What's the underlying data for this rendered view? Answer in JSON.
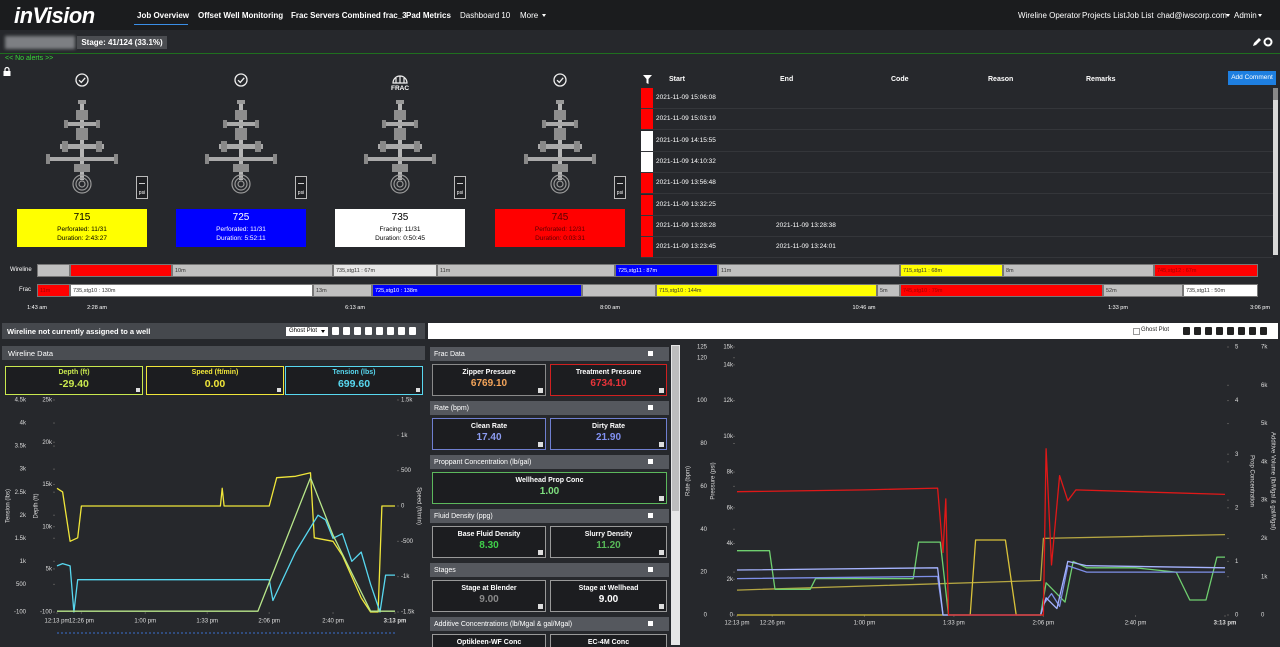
{
  "nav": {
    "brand": "inVision",
    "tabs": [
      "Job Overview",
      "Offset Well Monitoring",
      "Frac Servers Combined frac_3",
      "Pad Metrics",
      "Dashboard 10",
      "More"
    ],
    "right": [
      "Wireline Operator",
      "Projects List",
      "Job List",
      "chad@iwscorp.com",
      "Admin"
    ]
  },
  "stage": "Stage: 41/124 (33.1%)",
  "alerts": "<< No alerts >>",
  "gauge_unit": "psi",
  "wells": [
    {
      "number": "715",
      "line1": "Perforated: 11/31",
      "line2": "Duration: 2:43:27",
      "color": "#ffff00",
      "text_color": "#000000"
    },
    {
      "number": "725",
      "line1": "Perforated: 11/31",
      "line2": "Duration: 5:52:11",
      "color": "#0000ff",
      "text_color": "#ffffff"
    },
    {
      "number": "735",
      "line1": "Fracing: 11/31",
      "line2": "Duration: 0:50:45",
      "color": "#ffffff",
      "text_color": "#000000",
      "status": "FRAC"
    },
    {
      "number": "745",
      "line1": "Perforated: 12/31",
      "line2": "Duration: 0:03:31",
      "color": "#ff0000",
      "text_color": "#5a0000"
    }
  ],
  "events": {
    "headers": [
      "Start",
      "End",
      "Code",
      "Reason",
      "Remarks"
    ],
    "button": "Add Comment",
    "rows": [
      {
        "color": "#ff0000",
        "start": "2021-11-09 15:06:08"
      },
      {
        "color": "#ff0000",
        "start": "2021-11-09 15:03:19"
      },
      {
        "color": "#ffffff",
        "start": "2021-11-09 14:15:55"
      },
      {
        "color": "#ffffff",
        "start": "2021-11-09 14:10:32"
      },
      {
        "color": "#ff0000",
        "start": "2021-11-09 13:56:48"
      },
      {
        "color": "#ff0000",
        "start": "2021-11-09 13:32:25"
      },
      {
        "color": "#ff0000",
        "start": "2021-11-09 13:28:28",
        "end": "2021-11-09 13:28:38"
      },
      {
        "color": "#ff0000",
        "start": "2021-11-09 13:23:45",
        "end": "2021-11-09 13:24:01"
      }
    ]
  },
  "timeline": {
    "wireline_label": "Wireline",
    "frac_label": "Frac",
    "wireline": [
      {
        "color": "#c0c0c0"
      },
      {
        "color": "#ff0000"
      },
      {
        "color": "#c0c0c0",
        "label": "10m"
      },
      {
        "color": "#e6e6e6",
        "label": "735,stg11 : 67m"
      },
      {
        "color": "#c0c0c0",
        "label": "11m"
      },
      {
        "color": "#0000ff",
        "label": "725,stg11 : 87m"
      },
      {
        "color": "#c0c0c0",
        "label": "11m"
      },
      {
        "color": "#ffff00",
        "label": "715,stg11 : 68m"
      },
      {
        "color": "#c0c0c0",
        "label": "8m"
      },
      {
        "color": "#ff0000",
        "label": "745,stg12 : 67m"
      }
    ],
    "frac": [
      {
        "color": "#ff0000",
        "label": "11m"
      },
      {
        "color": "#ffffff",
        "label": "735,stg10 : 130m"
      },
      {
        "color": "#c0c0c0",
        "label": "13m"
      },
      {
        "color": "#0000ff",
        "label": "725,stg10 : 138m"
      },
      {
        "color": "#c0c0c0"
      },
      {
        "color": "#ffff00",
        "label": "715,stg10 : 144m"
      },
      {
        "color": "#c0c0c0",
        "label": "5m"
      },
      {
        "color": "#ff0000",
        "label": "745,stg10 : 79m"
      },
      {
        "color": "#c0c0c0",
        "label": "52m"
      },
      {
        "color": "#ffffff",
        "label": "735,stg11 : 50m"
      }
    ],
    "times": [
      "1:43 am",
      "2:28 am",
      "6:13 am",
      "8:00 am",
      "10:46 am",
      "1:33 pm",
      "3:06 pm"
    ]
  },
  "left_panel": {
    "title": "Wireline not currently assigned to a well",
    "ghost": "Ghost Plot",
    "section": "Wireline Data",
    "gauges": [
      {
        "label": "Depth (ft)",
        "value": "-29.40",
        "color": "#c9e84f"
      },
      {
        "label": "Speed (ft/min)",
        "value": "0.00",
        "color": "#f0e63a"
      },
      {
        "label": "Tension (lbs)",
        "value": "699.60",
        "color": "#58d8f0"
      }
    ]
  },
  "right_panel": {
    "ghost": "Ghost Plot"
  },
  "frac_panel": {
    "sections": [
      {
        "title": "Frac Data",
        "gauges": [
          {
            "label": "Zipper Pressure",
            "value": "6769.10",
            "color": "#f5a55a",
            "border": "#8a8a8a"
          },
          {
            "label": "Treatment Pressure",
            "value": "6734.10",
            "color": "#e8343a",
            "border": "#d02020"
          }
        ]
      },
      {
        "title": "Rate (bpm)",
        "gauges": [
          {
            "label": "Clean Rate",
            "value": "17.40",
            "color": "#8c9cf0",
            "border": "#6f7fd0"
          },
          {
            "label": "Dirty Rate",
            "value": "21.90",
            "color": "#8190f0",
            "border": "#6f7fd0"
          }
        ]
      },
      {
        "title": "Proppant Concentration (lb/gal)",
        "gauges": [
          {
            "label": "Wellhead Prop Conc",
            "value": "1.00",
            "color": "#7fe07f",
            "border": "#5cb85c"
          }
        ]
      },
      {
        "title": "Fluid Density (ppg)",
        "gauges": [
          {
            "label": "Base Fluid Density",
            "value": "8.30",
            "color": "#3fd04a",
            "border": "#999999"
          },
          {
            "label": "Slurry Density",
            "value": "11.20",
            "color": "#58b858",
            "border": "#999999"
          }
        ]
      },
      {
        "title": "Stages",
        "gauges": [
          {
            "label": "Stage at Blender",
            "value": "9.00",
            "color": "#8a8a8a",
            "border": "#999999"
          },
          {
            "label": "Stage at Wellhead",
            "value": "9.00",
            "color": "#ffffff",
            "border": "#999999"
          }
        ]
      },
      {
        "title": "Additive Concentrations (lb/Mgal & gal/Mgal)",
        "gauges": [
          {
            "label": "Optikleen-WF Conc",
            "border": "#999999"
          },
          {
            "label": "EC-4M Conc",
            "border": "#999999"
          }
        ]
      }
    ]
  },
  "chart_data": [
    {
      "type": "line",
      "grid": false,
      "xlim": [
        "12:13 pm",
        "3:13 pm"
      ],
      "xticks": [
        "12:13 pm",
        "12:26 pm",
        "1:00 pm",
        "1:33 pm",
        "2:06 pm",
        "2:40 pm",
        "3:13 pm"
      ],
      "y_label": "Tension (lbs)",
      "ylim": [
        -100,
        4500
      ],
      "yticks": [
        -100,
        500,
        {
          "value": 1000,
          "label": "1k"
        },
        {
          "value": 1500,
          "label": "1.5k"
        },
        {
          "value": 2000,
          "label": "2k"
        },
        {
          "value": 2500,
          "label": "2.5k"
        },
        {
          "value": 3000,
          "label": "3k"
        },
        {
          "value": 3500,
          "label": "3.5k"
        },
        {
          "value": 4000,
          "label": "4k"
        },
        {
          "value": 4500,
          "label": "4.5k"
        }
      ],
      "y3_label": "Depth (ft)",
      "y3lim": [
        -100,
        25000
      ],
      "y3ticks": [
        -100,
        {
          "value": 5000,
          "label": "5k"
        },
        {
          "value": 10000,
          "label": "10k"
        },
        {
          "value": 15000,
          "label": "15k"
        },
        {
          "value": 20000,
          "label": "20k"
        },
        {
          "value": 25000,
          "label": "25k"
        }
      ],
      "y2_label": "Speed (ft/min)",
      "y2lim": [
        -1500,
        1500
      ],
      "y2ticks": [
        {
          "value": -1500,
          "label": "-1.5k"
        },
        {
          "value": -1000,
          "label": "-1k"
        },
        -500,
        0,
        500,
        {
          "value": 1000,
          "label": "1k"
        },
        {
          "value": 1500,
          "label": "1.5k"
        }
      ],
      "series": [
        {
          "color": "#f0e63a",
          "axis": "y2",
          "x": [
            "12:13 pm",
            "12:16 pm",
            "12:20 pm",
            "12:24 pm",
            "12:26 pm",
            "1:00 pm",
            "1:40 pm",
            "1:41 pm",
            "1:42 pm",
            "2:06 pm",
            "2:10 pm",
            "2:20 pm",
            "2:28 pm",
            "2:30 pm",
            "2:40 pm",
            "2:45 pm",
            "2:55 pm",
            "3:00 pm",
            "3:04 pm",
            "3:06 pm",
            "3:13 pm"
          ],
          "values": [
            250,
            200,
            -500,
            -450,
            0,
            0,
            0,
            250,
            0,
            0,
            400,
            420,
            470,
            -450,
            -500,
            -700,
            -1300,
            -1500,
            -1500,
            0,
            0
          ]
        },
        {
          "color": "#58d8f0",
          "axis": "y",
          "x": [
            "12:13 pm",
            "12:16 pm",
            "12:20 pm",
            "12:22 pm",
            "12:24 pm",
            "1:00 pm",
            "1:33 pm",
            "2:06 pm",
            "2:08 pm",
            "2:20 pm",
            "2:32 pm",
            "2:36 pm",
            "2:40 pm",
            "2:45 pm",
            "2:50 pm",
            "2:55 pm",
            "3:00 pm",
            "3:05 pm",
            "3:08 pm",
            "3:13 pm"
          ],
          "values": [
            900,
            950,
            900,
            -100,
            600,
            600,
            600,
            600,
            150,
            1200,
            2000,
            1900,
            1500,
            1600,
            1000,
            1200,
            500,
            -100,
            700,
            700
          ]
        },
        {
          "color": "#b8e68a",
          "axis": "y3",
          "x": [
            "12:13 pm",
            "2:00 pm",
            "2:28 pm",
            "2:40 pm",
            "3:00 pm",
            "3:13 pm"
          ],
          "values": [
            0,
            0,
            15800,
            9000,
            0,
            0
          ]
        }
      ]
    },
    {
      "type": "line",
      "grid": false,
      "xlim": [
        "12:13 pm",
        "3:13 pm"
      ],
      "xticks": [
        "12:13 pm",
        "12:26 pm",
        "1:00 pm",
        "1:33 pm",
        "2:06 pm",
        "2:40 pm",
        "3:13 pm"
      ],
      "y_label": "Rate (bpm)",
      "ylim": [
        0,
        125
      ],
      "yticks": [
        0,
        20,
        40,
        60,
        80,
        100,
        120,
        125
      ],
      "y3_label": "Pressure (psi)",
      "y3lim": [
        0,
        15000
      ],
      "y3ticks": [
        0,
        {
          "value": 2000,
          "label": "2k"
        },
        {
          "value": 4000,
          "label": "4k"
        },
        {
          "value": 6000,
          "label": "6k"
        },
        {
          "value": 8000,
          "label": "8k"
        },
        {
          "value": 10000,
          "label": "10k"
        },
        {
          "value": 12000,
          "label": "12k"
        },
        {
          "value": 14000,
          "label": "14k"
        },
        {
          "value": 15000,
          "label": "15k"
        }
      ],
      "y2_label": "Prop Concentration",
      "y2lim": [
        0,
        5
      ],
      "y2ticks": [
        0,
        1,
        2,
        3,
        4,
        5
      ],
      "y4_label": "Additive Volume (lb/Mgal & gal/Mgal)",
      "y4lim": [
        0,
        7000
      ],
      "y4ticks": [
        0,
        {
          "value": 1000,
          "label": "1k"
        },
        {
          "value": 2000,
          "label": "2k"
        },
        {
          "value": 3000,
          "label": "3k"
        },
        {
          "value": 4000,
          "label": "4k"
        },
        {
          "value": 5000,
          "label": "5k"
        },
        {
          "value": 6000,
          "label": "6k"
        },
        {
          "value": 7000,
          "label": "7k"
        }
      ],
      "series": [
        {
          "color": "#b5a642",
          "axis": "y4",
          "x": [
            "12:13 pm",
            "2:05 pm",
            "2:06 pm",
            "3:13 pm"
          ],
          "values": [
            650,
            900,
            2000,
            2100
          ]
        },
        {
          "color": "#d9c23a",
          "axis": "y2",
          "x": [
            "12:13 pm",
            "1:39 pm",
            "1:41 pm",
            "1:52 pm",
            "1:56 pm",
            "2:06 pm"
          ],
          "values": [
            0,
            0,
            1.4,
            1.4,
            0,
            0
          ]
        },
        {
          "color": "#6fcf6f",
          "axis": "y",
          "x": [
            "12:13 pm",
            "12:25 pm",
            "12:27 pm",
            "12:40 pm",
            "12:42 pm",
            "1:18 pm",
            "1:20 pm",
            "1:28 pm",
            "1:31 pm",
            "2:05 pm",
            "2:07 pm",
            "2:14 pm",
            "2:17 pm",
            "2:22 pm",
            "2:40 pm",
            "2:55 pm",
            "3:00 pm",
            "3:06 pm",
            "3:10 pm",
            "3:13 pm"
          ],
          "values": [
            30,
            30,
            12,
            12,
            17,
            17,
            34,
            34,
            0,
            0,
            15,
            6,
            25,
            22,
            22,
            20,
            7,
            7,
            27,
            27
          ]
        },
        {
          "color": "#7e8fe8",
          "axis": "y",
          "x": [
            "12:13 pm",
            "1:27 pm",
            "1:29 pm",
            "2:05 pm",
            "2:06 pm",
            "2:09 pm",
            "2:12 pm",
            "2:15 pm",
            "2:22 pm",
            "3:13 pm"
          ],
          "values": [
            17,
            18,
            0,
            0,
            5,
            10,
            4,
            23,
            20,
            20
          ]
        },
        {
          "color": "#a6b4ff",
          "axis": "y",
          "x": [
            "12:13 pm",
            "1:27 pm",
            "1:29 pm",
            "2:05 pm",
            "2:07 pm",
            "2:11 pm",
            "2:15 pm",
            "2:22 pm",
            "3:13 pm"
          ],
          "values": [
            21,
            22,
            0,
            0,
            8,
            3,
            25,
            23,
            22
          ]
        },
        {
          "color": "#e01818",
          "axis": "y3",
          "x": [
            "12:13 pm",
            "1:00 pm",
            "1:27 pm",
            "1:29 pm",
            "1:30 pm",
            "1:31 pm",
            "2:06 pm",
            "2:07 pm",
            "2:09 pm",
            "2:12 pm",
            "2:15 pm",
            "2:18 pm",
            "2:40 pm",
            "3:13 pm"
          ],
          "values": [
            6900,
            7000,
            7100,
            3500,
            6500,
            0,
            0,
            9300,
            2800,
            7800,
            6400,
            7000,
            6900,
            6750
          ]
        }
      ]
    }
  ]
}
